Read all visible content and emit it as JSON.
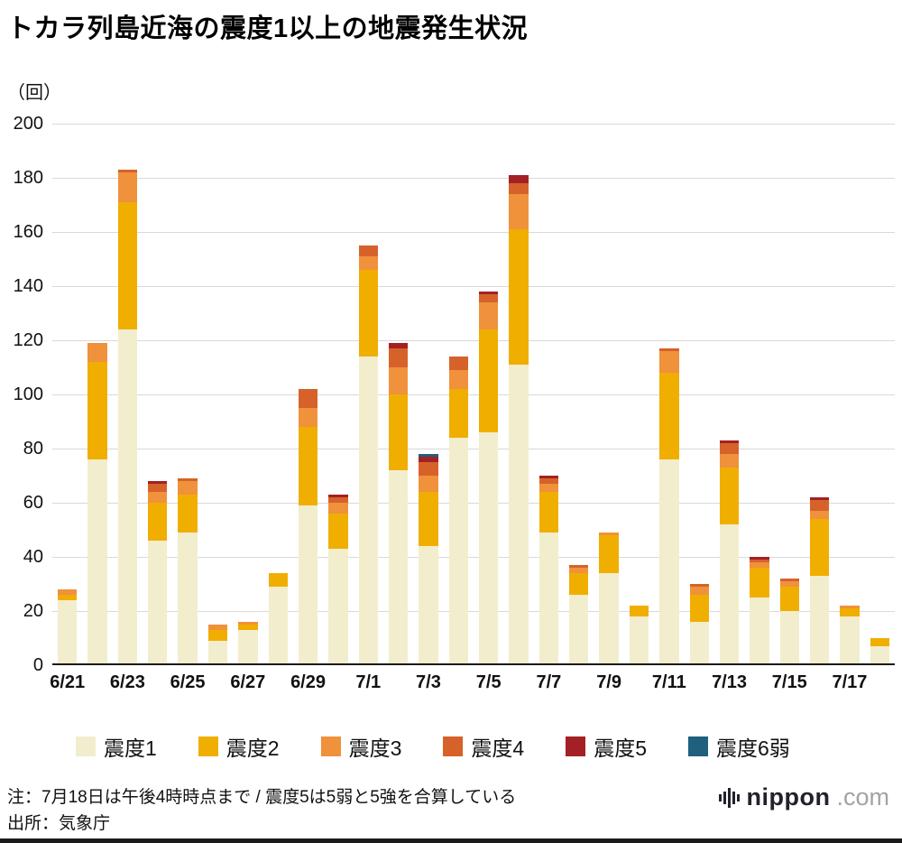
{
  "title": "トカラ列島近海の震度1以上の地震発生状況",
  "y_unit": "（回）",
  "chart_data": {
    "type": "bar",
    "stacked": true,
    "title": "トカラ列島近海の震度1以上の地震発生状況",
    "ylabel": "（回）",
    "ylim": [
      0,
      200
    ],
    "y_ticks": [
      0,
      20,
      40,
      60,
      80,
      100,
      120,
      140,
      160,
      180,
      200
    ],
    "grid": "horizontal",
    "x_label_step": 2,
    "categories": [
      "6/21",
      "6/22",
      "6/23",
      "6/24",
      "6/25",
      "6/26",
      "6/27",
      "6/28",
      "6/29",
      "6/30",
      "7/1",
      "7/2",
      "7/3",
      "7/4",
      "7/5",
      "7/6",
      "7/7",
      "7/8",
      "7/9",
      "7/10",
      "7/11",
      "7/12",
      "7/13",
      "7/14",
      "7/15",
      "7/16",
      "7/17",
      "7/18"
    ],
    "series": [
      {
        "name": "震度1",
        "color": "#f2eecd",
        "values": [
          24,
          76,
          124,
          46,
          49,
          9,
          13,
          29,
          59,
          43,
          114,
          72,
          44,
          84,
          86,
          111,
          49,
          26,
          34,
          18,
          76,
          16,
          52,
          25,
          20,
          33,
          18,
          7
        ]
      },
      {
        "name": "震度2",
        "color": "#f0ae00",
        "values": [
          2,
          36,
          47,
          14,
          14,
          4,
          2,
          5,
          29,
          13,
          32,
          28,
          20,
          18,
          38,
          50,
          15,
          8,
          14,
          4,
          32,
          10,
          21,
          11,
          9,
          21,
          3,
          3
        ]
      },
      {
        "name": "震度3",
        "color": "#f0913c",
        "values": [
          2,
          7,
          11,
          4,
          5,
          2,
          1,
          0,
          7,
          4,
          5,
          10,
          6,
          7,
          10,
          13,
          3,
          2,
          1,
          0,
          8,
          3,
          5,
          2,
          2,
          3,
          1,
          0
        ]
      },
      {
        "name": "震度4",
        "color": "#d6622a",
        "values": [
          0,
          0,
          1,
          3,
          1,
          0,
          0,
          0,
          7,
          2,
          4,
          7,
          5,
          5,
          3,
          4,
          2,
          1,
          0,
          0,
          1,
          1,
          4,
          1,
          1,
          4,
          0,
          0
        ]
      },
      {
        "name": "震度5",
        "color": "#a32125",
        "values": [
          0,
          0,
          0,
          1,
          0,
          0,
          0,
          0,
          0,
          1,
          0,
          2,
          2,
          0,
          1,
          3,
          1,
          0,
          0,
          0,
          0,
          0,
          1,
          1,
          0,
          1,
          0,
          0
        ]
      },
      {
        "name": "震度6弱",
        "color": "#20607f",
        "values": [
          0,
          0,
          0,
          0,
          0,
          0,
          0,
          0,
          0,
          0,
          0,
          0,
          1,
          0,
          0,
          0,
          0,
          0,
          0,
          0,
          0,
          0,
          0,
          0,
          0,
          0,
          0,
          0
        ]
      }
    ]
  },
  "legend": {
    "items": [
      {
        "label": "震度1",
        "color": "#f2eecd"
      },
      {
        "label": "震度2",
        "color": "#f0ae00"
      },
      {
        "label": "震度3",
        "color": "#f0913c"
      },
      {
        "label": "震度4",
        "color": "#d6622a"
      },
      {
        "label": "震度5",
        "color": "#a32125"
      },
      {
        "label": "震度6弱",
        "color": "#20607f"
      }
    ]
  },
  "note": "注：7月18日は午後4時時点まで / 震度5は5弱と5強を合算している",
  "source": "出所：気象庁",
  "branding": {
    "wordmark": "nippon",
    "suffix": ".com"
  }
}
